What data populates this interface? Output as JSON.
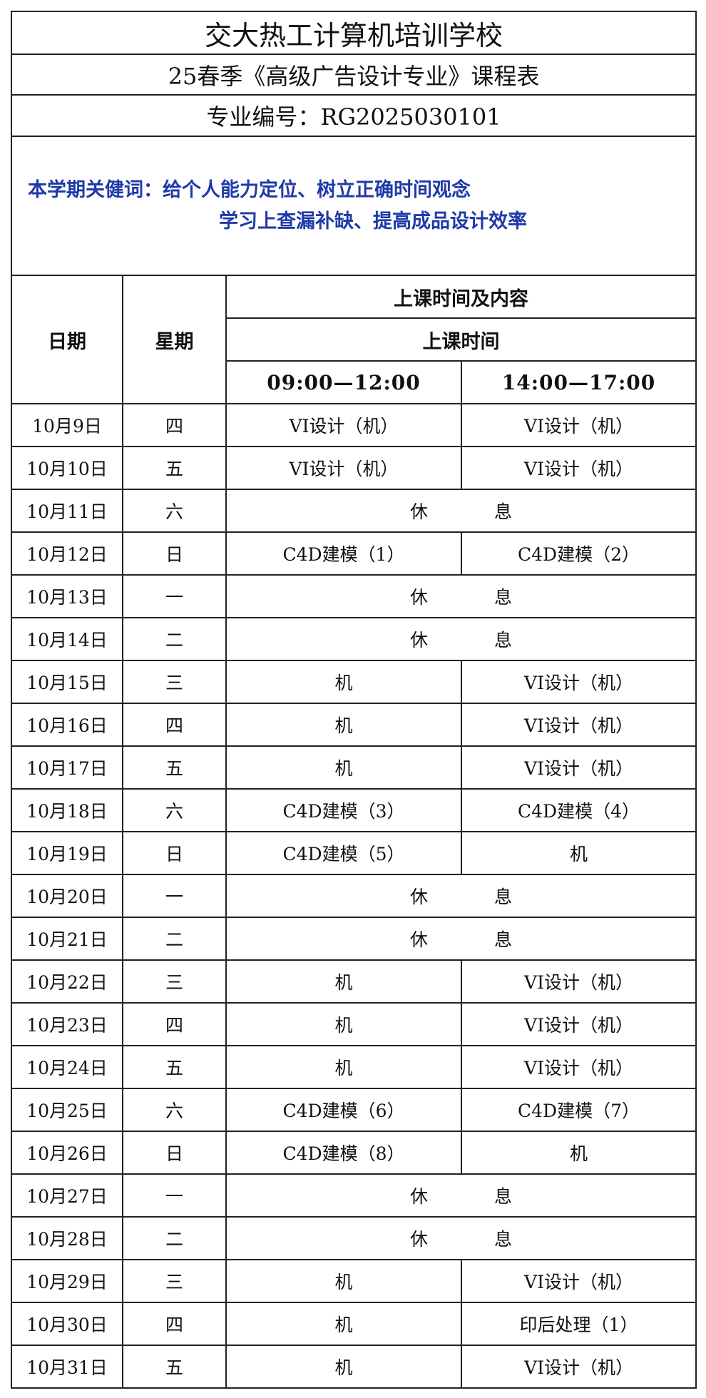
{
  "title": "交大热工计算机培训学校",
  "subtitle": "25春季《高级广告设计专业》课程表",
  "code": "专业编号：RG2025030101",
  "keywords": {
    "line1": "本学期关健词：给个人能力定位、树立正确时间观念",
    "line2": "学习上查漏补缺、提高成品设计效率"
  },
  "header": {
    "date": "日期",
    "weekday": "星期",
    "content": "上课时间及内容",
    "time": "上课时间",
    "am": "09:00—12:00",
    "pm": "14:00—17:00"
  },
  "rest": [
    "休",
    "息"
  ],
  "rows": [
    {
      "date": "10月9日",
      "wd": "四",
      "am": "VI设计（机）",
      "pm": "VI设计（机）"
    },
    {
      "date": "10月10日",
      "wd": "五",
      "am": "VI设计（机）",
      "pm": "VI设计（机）"
    },
    {
      "date": "10月11日",
      "wd": "六",
      "rest": true
    },
    {
      "date": "10月12日",
      "wd": "日",
      "am": "C4D建模（1）",
      "pm": "C4D建模（2）"
    },
    {
      "date": "10月13日",
      "wd": "一",
      "rest": true
    },
    {
      "date": "10月14日",
      "wd": "二",
      "rest": true
    },
    {
      "date": "10月15日",
      "wd": "三",
      "am": "机",
      "pm": "VI设计（机）"
    },
    {
      "date": "10月16日",
      "wd": "四",
      "am": "机",
      "pm": "VI设计（机）"
    },
    {
      "date": "10月17日",
      "wd": "五",
      "am": "机",
      "pm": "VI设计（机）"
    },
    {
      "date": "10月18日",
      "wd": "六",
      "am": "C4D建模（3）",
      "pm": "C4D建模（4）"
    },
    {
      "date": "10月19日",
      "wd": "日",
      "am": "C4D建模（5）",
      "pm": "机"
    },
    {
      "date": "10月20日",
      "wd": "一",
      "rest": true
    },
    {
      "date": "10月21日",
      "wd": "二",
      "rest": true
    },
    {
      "date": "10月22日",
      "wd": "三",
      "am": "机",
      "pm": "VI设计（机）"
    },
    {
      "date": "10月23日",
      "wd": "四",
      "am": "机",
      "pm": "VI设计（机）"
    },
    {
      "date": "10月24日",
      "wd": "五",
      "am": "机",
      "pm": "VI设计（机）"
    },
    {
      "date": "10月25日",
      "wd": "六",
      "am": "C4D建模（6）",
      "pm": "C4D建模（7）"
    },
    {
      "date": "10月26日",
      "wd": "日",
      "am": "C4D建模（8）",
      "pm": "机"
    },
    {
      "date": "10月27日",
      "wd": "一",
      "rest": true
    },
    {
      "date": "10月28日",
      "wd": "二",
      "rest": true
    },
    {
      "date": "10月29日",
      "wd": "三",
      "am": "机",
      "pm": "VI设计（机）"
    },
    {
      "date": "10月30日",
      "wd": "四",
      "am": "机",
      "pm": "印后处理（1）"
    },
    {
      "date": "10月31日",
      "wd": "五",
      "am": "机",
      "pm": "VI设计（机）"
    }
  ]
}
